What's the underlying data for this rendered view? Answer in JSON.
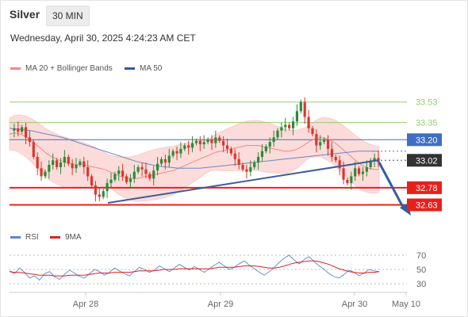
{
  "header": {
    "symbol": "Silver",
    "timeframe": "30 MIN",
    "timestamp": "Wednesday, April 30, 2025 4:24:23 AM CET"
  },
  "legend": {
    "main": [
      {
        "label": "MA 20 + Bollinger Bands",
        "color": "#f08a82"
      },
      {
        "label": "MA 50",
        "color": "#2f5b9e"
      }
    ],
    "rsi": [
      {
        "label": "RSI",
        "color": "#5a86d6"
      },
      {
        "label": "9MA",
        "color": "#e02020"
      }
    ]
  },
  "colors": {
    "resistance_green": "#9acb6e",
    "pivot_blue": "#3f6fc4",
    "support_red": "#e8201c",
    "current_price_bg": "#333333",
    "candle_up": "#2c8a3a",
    "candle_down": "#e0342b",
    "band_fill": "#fbd9d6",
    "trendline": "#3b5d9c",
    "arrow": "#2f5ea6"
  },
  "chart_data": [
    {
      "type": "candlestick",
      "title": "Silver 30 MIN",
      "x_ticks": [
        "Apr 28",
        "Apr 29",
        "Apr 30",
        "May 10"
      ],
      "y_range": [
        32.46,
        33.75
      ],
      "price_levels": [
        {
          "value": 33.53,
          "label": "33.53",
          "kind": "resistance"
        },
        {
          "value": 33.35,
          "label": "33.35",
          "kind": "resistance"
        },
        {
          "value": 33.2,
          "label": "33.20",
          "kind": "pivot"
        },
        {
          "value": 32.78,
          "label": "32.78",
          "kind": "support"
        },
        {
          "value": 32.63,
          "label": "32.63",
          "kind": "support"
        }
      ],
      "current_price": {
        "value": 33.02,
        "label": "33.02"
      },
      "close_path": [
        33.28,
        33.3,
        33.27,
        33.31,
        33.22,
        33.18,
        33.05,
        32.95,
        32.88,
        32.92,
        32.98,
        33.02,
        32.96,
        33.0,
        33.05,
        32.99,
        32.95,
        32.98,
        33.01,
        32.96,
        32.88,
        32.8,
        32.72,
        32.7,
        32.75,
        32.82,
        32.85,
        32.9,
        32.93,
        32.88,
        32.83,
        32.86,
        32.92,
        32.96,
        32.94,
        32.9,
        32.86,
        32.93,
        32.99,
        33.03,
        33.0,
        33.06,
        33.1,
        33.08,
        33.12,
        33.15,
        33.13,
        33.17,
        33.19,
        33.16,
        33.18,
        33.2,
        33.17,
        33.22,
        33.19,
        33.15,
        33.12,
        33.08,
        33.03,
        32.98,
        32.94,
        32.92,
        32.96,
        33.0,
        33.05,
        33.1,
        33.14,
        33.18,
        33.22,
        33.28,
        33.31,
        33.33,
        33.3,
        33.36,
        33.45,
        33.53,
        33.4,
        33.3,
        33.25,
        33.15,
        33.18,
        33.2,
        33.12,
        33.05,
        33.02,
        32.95,
        32.85,
        32.82,
        32.88,
        32.95,
        32.9,
        32.92,
        32.96,
        33.02,
        33.04,
        33.0
      ],
      "ma20": [
        33.25,
        33.26,
        33.25,
        33.23,
        33.2,
        33.16,
        33.12,
        33.08,
        33.05,
        33.03,
        33.01,
        33.0,
        32.99,
        32.98,
        32.98,
        32.97,
        32.96,
        32.95,
        32.94,
        32.92,
        32.9,
        32.88,
        32.87,
        32.86,
        32.86,
        32.87,
        32.88,
        32.89,
        32.9,
        32.91,
        32.92,
        32.93,
        32.95,
        32.97,
        32.99,
        33.01,
        33.03,
        33.05,
        33.07,
        33.09,
        33.1,
        33.11,
        33.12,
        33.13,
        33.14,
        33.15,
        33.15,
        33.15,
        33.14,
        33.13,
        33.12,
        33.11,
        33.1,
        33.1,
        33.11,
        33.13,
        33.16,
        33.19,
        33.21,
        33.22,
        33.21,
        33.19,
        33.16,
        33.12,
        33.08,
        33.04,
        33.0,
        32.97,
        32.95,
        32.94,
        32.94
      ],
      "ma50": [
        33.3,
        33.29,
        33.28,
        33.26,
        33.24,
        33.22,
        33.19,
        33.16,
        33.13,
        33.1,
        33.07,
        33.04,
        33.01,
        32.99,
        32.97,
        32.96,
        32.95,
        32.95,
        32.95,
        32.96,
        32.97,
        32.98,
        32.99,
        33.0,
        33.01,
        33.02,
        33.03,
        33.04,
        33.05,
        33.06,
        33.07,
        33.08,
        33.09,
        33.1,
        33.1,
        33.1
      ]
    },
    {
      "type": "line",
      "title": "RSI",
      "y_ticks": [
        70,
        50,
        30
      ],
      "y_range": [
        20,
        80
      ],
      "series": [
        {
          "name": "RSI",
          "values": [
            48,
            44,
            52,
            46,
            38,
            41,
            35,
            44,
            47,
            40,
            36,
            43,
            49,
            45,
            40,
            38,
            44,
            50,
            47,
            42,
            46,
            52,
            48,
            44,
            41,
            47,
            53,
            50,
            46,
            49,
            55,
            51,
            47,
            52,
            57,
            53,
            49,
            54,
            50,
            46,
            51,
            56,
            60,
            55,
            50,
            53,
            58,
            62,
            56,
            51,
            46,
            42,
            47,
            53,
            60,
            66,
            70,
            63,
            58,
            64,
            68,
            61,
            55,
            50,
            44,
            40,
            38,
            43,
            49,
            46,
            41,
            45,
            50,
            48,
            47
          ]
        },
        {
          "name": "9MA",
          "values": [
            47,
            46,
            46,
            45,
            44,
            43,
            42,
            42,
            42,
            41,
            41,
            41,
            42,
            42,
            42,
            42,
            43,
            44,
            45,
            45,
            45,
            46,
            46,
            46,
            46,
            47,
            48,
            48,
            48,
            48,
            49,
            50,
            50,
            50,
            51,
            51,
            51,
            51,
            51,
            51,
            51,
            52,
            53,
            53,
            53,
            53,
            54,
            55,
            55,
            55,
            54,
            53,
            52,
            52,
            53,
            55,
            57,
            59,
            60,
            61,
            62,
            62,
            61,
            59,
            57,
            54,
            51,
            49,
            47,
            46,
            45,
            45,
            46,
            46,
            47
          ]
        }
      ]
    }
  ]
}
